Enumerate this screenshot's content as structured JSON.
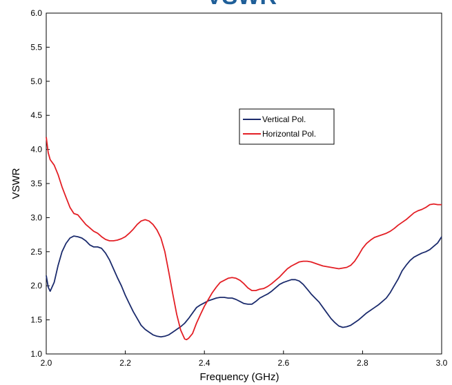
{
  "chart_data": {
    "type": "line",
    "title": "VSWR",
    "xlabel": "Frequency (GHz)",
    "ylabel": "VSWR",
    "xlim": [
      2.0,
      3.0
    ],
    "ylim": [
      1.0,
      6.0
    ],
    "x_ticks": [
      "2.0",
      "2.2",
      "2.4",
      "2.6",
      "2.8",
      "3.0"
    ],
    "y_ticks": [
      "1.0",
      "1.5",
      "2.0",
      "2.5",
      "3.0",
      "3.5",
      "4.0",
      "4.5",
      "5.0",
      "5.5",
      "6.0"
    ],
    "grid": false,
    "legend_position": "center-right",
    "series": [
      {
        "name": "Vertical Pol.",
        "color": "#1a2a6c",
        "points": [
          [
            2.0,
            2.15
          ],
          [
            2.005,
            1.98
          ],
          [
            2.01,
            1.92
          ],
          [
            2.02,
            2.05
          ],
          [
            2.03,
            2.3
          ],
          [
            2.04,
            2.5
          ],
          [
            2.05,
            2.62
          ],
          [
            2.06,
            2.7
          ],
          [
            2.07,
            2.73
          ],
          [
            2.08,
            2.72
          ],
          [
            2.09,
            2.7
          ],
          [
            2.1,
            2.66
          ],
          [
            2.11,
            2.6
          ],
          [
            2.12,
            2.57
          ],
          [
            2.13,
            2.57
          ],
          [
            2.14,
            2.55
          ],
          [
            2.15,
            2.48
          ],
          [
            2.16,
            2.38
          ],
          [
            2.17,
            2.25
          ],
          [
            2.18,
            2.12
          ],
          [
            2.19,
            2.0
          ],
          [
            2.2,
            1.86
          ],
          [
            2.21,
            1.74
          ],
          [
            2.22,
            1.62
          ],
          [
            2.23,
            1.52
          ],
          [
            2.24,
            1.42
          ],
          [
            2.25,
            1.36
          ],
          [
            2.26,
            1.32
          ],
          [
            2.27,
            1.28
          ],
          [
            2.28,
            1.26
          ],
          [
            2.29,
            1.25
          ],
          [
            2.3,
            1.26
          ],
          [
            2.31,
            1.28
          ],
          [
            2.32,
            1.32
          ],
          [
            2.33,
            1.36
          ],
          [
            2.34,
            1.4
          ],
          [
            2.35,
            1.45
          ],
          [
            2.36,
            1.52
          ],
          [
            2.37,
            1.6
          ],
          [
            2.38,
            1.68
          ],
          [
            2.39,
            1.72
          ],
          [
            2.4,
            1.75
          ],
          [
            2.41,
            1.78
          ],
          [
            2.42,
            1.8
          ],
          [
            2.43,
            1.82
          ],
          [
            2.44,
            1.83
          ],
          [
            2.45,
            1.83
          ],
          [
            2.46,
            1.82
          ],
          [
            2.47,
            1.82
          ],
          [
            2.48,
            1.8
          ],
          [
            2.49,
            1.77
          ],
          [
            2.5,
            1.74
          ],
          [
            2.51,
            1.73
          ],
          [
            2.52,
            1.73
          ],
          [
            2.53,
            1.77
          ],
          [
            2.54,
            1.82
          ],
          [
            2.55,
            1.85
          ],
          [
            2.56,
            1.88
          ],
          [
            2.57,
            1.92
          ],
          [
            2.58,
            1.97
          ],
          [
            2.59,
            2.02
          ],
          [
            2.6,
            2.05
          ],
          [
            2.61,
            2.07
          ],
          [
            2.62,
            2.09
          ],
          [
            2.63,
            2.09
          ],
          [
            2.64,
            2.07
          ],
          [
            2.65,
            2.02
          ],
          [
            2.66,
            1.95
          ],
          [
            2.67,
            1.88
          ],
          [
            2.68,
            1.82
          ],
          [
            2.69,
            1.76
          ],
          [
            2.7,
            1.68
          ],
          [
            2.71,
            1.6
          ],
          [
            2.72,
            1.52
          ],
          [
            2.73,
            1.46
          ],
          [
            2.74,
            1.41
          ],
          [
            2.75,
            1.39
          ],
          [
            2.76,
            1.4
          ],
          [
            2.77,
            1.42
          ],
          [
            2.78,
            1.46
          ],
          [
            2.79,
            1.5
          ],
          [
            2.8,
            1.55
          ],
          [
            2.81,
            1.6
          ],
          [
            2.82,
            1.64
          ],
          [
            2.83,
            1.68
          ],
          [
            2.84,
            1.72
          ],
          [
            2.85,
            1.77
          ],
          [
            2.86,
            1.82
          ],
          [
            2.87,
            1.9
          ],
          [
            2.88,
            2.0
          ],
          [
            2.89,
            2.1
          ],
          [
            2.9,
            2.22
          ],
          [
            2.91,
            2.3
          ],
          [
            2.92,
            2.37
          ],
          [
            2.93,
            2.42
          ],
          [
            2.94,
            2.45
          ],
          [
            2.95,
            2.48
          ],
          [
            2.96,
            2.5
          ],
          [
            2.97,
            2.53
          ],
          [
            2.98,
            2.58
          ],
          [
            2.99,
            2.63
          ],
          [
            3.0,
            2.72
          ]
        ]
      },
      {
        "name": "Horizontal Pol.",
        "color": "#e31e24",
        "points": [
          [
            2.0,
            4.18
          ],
          [
            2.005,
            3.95
          ],
          [
            2.01,
            3.85
          ],
          [
            2.02,
            3.77
          ],
          [
            2.03,
            3.63
          ],
          [
            2.04,
            3.45
          ],
          [
            2.05,
            3.3
          ],
          [
            2.06,
            3.15
          ],
          [
            2.07,
            3.06
          ],
          [
            2.08,
            3.04
          ],
          [
            2.09,
            2.97
          ],
          [
            2.1,
            2.9
          ],
          [
            2.11,
            2.85
          ],
          [
            2.12,
            2.8
          ],
          [
            2.13,
            2.77
          ],
          [
            2.14,
            2.72
          ],
          [
            2.15,
            2.68
          ],
          [
            2.16,
            2.66
          ],
          [
            2.17,
            2.66
          ],
          [
            2.18,
            2.67
          ],
          [
            2.19,
            2.69
          ],
          [
            2.2,
            2.72
          ],
          [
            2.21,
            2.77
          ],
          [
            2.22,
            2.83
          ],
          [
            2.23,
            2.9
          ],
          [
            2.24,
            2.95
          ],
          [
            2.25,
            2.97
          ],
          [
            2.26,
            2.95
          ],
          [
            2.27,
            2.9
          ],
          [
            2.28,
            2.82
          ],
          [
            2.29,
            2.7
          ],
          [
            2.3,
            2.5
          ],
          [
            2.31,
            2.2
          ],
          [
            2.32,
            1.88
          ],
          [
            2.33,
            1.58
          ],
          [
            2.34,
            1.35
          ],
          [
            2.35,
            1.22
          ],
          [
            2.355,
            1.21
          ],
          [
            2.36,
            1.23
          ],
          [
            2.37,
            1.3
          ],
          [
            2.38,
            1.45
          ],
          [
            2.39,
            1.58
          ],
          [
            2.4,
            1.7
          ],
          [
            2.41,
            1.8
          ],
          [
            2.42,
            1.9
          ],
          [
            2.43,
            1.98
          ],
          [
            2.44,
            2.05
          ],
          [
            2.45,
            2.08
          ],
          [
            2.46,
            2.11
          ],
          [
            2.47,
            2.12
          ],
          [
            2.48,
            2.11
          ],
          [
            2.49,
            2.08
          ],
          [
            2.5,
            2.03
          ],
          [
            2.51,
            1.97
          ],
          [
            2.52,
            1.93
          ],
          [
            2.53,
            1.93
          ],
          [
            2.54,
            1.95
          ],
          [
            2.55,
            1.96
          ],
          [
            2.56,
            1.99
          ],
          [
            2.57,
            2.03
          ],
          [
            2.58,
            2.08
          ],
          [
            2.59,
            2.13
          ],
          [
            2.6,
            2.19
          ],
          [
            2.61,
            2.25
          ],
          [
            2.62,
            2.29
          ],
          [
            2.63,
            2.32
          ],
          [
            2.64,
            2.35
          ],
          [
            2.65,
            2.36
          ],
          [
            2.66,
            2.36
          ],
          [
            2.67,
            2.35
          ],
          [
            2.68,
            2.33
          ],
          [
            2.69,
            2.31
          ],
          [
            2.7,
            2.29
          ],
          [
            2.71,
            2.28
          ],
          [
            2.72,
            2.27
          ],
          [
            2.73,
            2.26
          ],
          [
            2.74,
            2.25
          ],
          [
            2.75,
            2.26
          ],
          [
            2.76,
            2.27
          ],
          [
            2.77,
            2.3
          ],
          [
            2.78,
            2.36
          ],
          [
            2.79,
            2.45
          ],
          [
            2.8,
            2.55
          ],
          [
            2.81,
            2.62
          ],
          [
            2.82,
            2.67
          ],
          [
            2.83,
            2.71
          ],
          [
            2.84,
            2.73
          ],
          [
            2.85,
            2.75
          ],
          [
            2.86,
            2.77
          ],
          [
            2.87,
            2.8
          ],
          [
            2.88,
            2.84
          ],
          [
            2.89,
            2.89
          ],
          [
            2.9,
            2.93
          ],
          [
            2.91,
            2.97
          ],
          [
            2.92,
            3.02
          ],
          [
            2.93,
            3.07
          ],
          [
            2.94,
            3.1
          ],
          [
            2.95,
            3.12
          ],
          [
            2.96,
            3.15
          ],
          [
            2.97,
            3.19
          ],
          [
            2.98,
            3.2
          ],
          [
            2.99,
            3.19
          ],
          [
            3.0,
            3.19
          ]
        ]
      }
    ]
  }
}
